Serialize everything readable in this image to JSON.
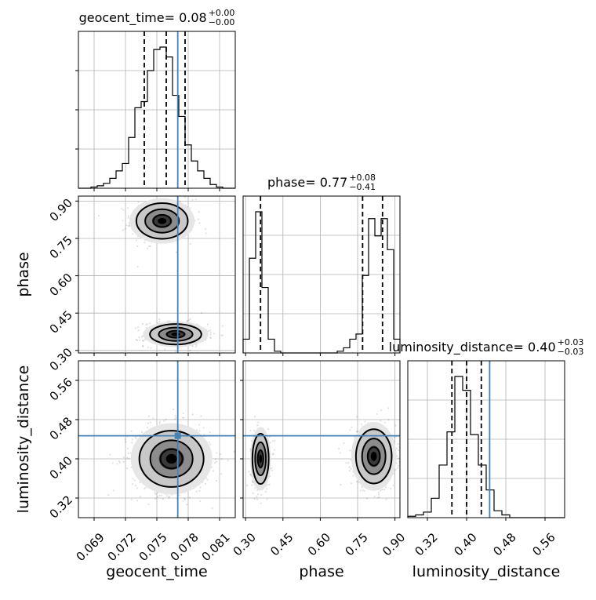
{
  "chart_data": {
    "type": "corner",
    "truth_color": "#4682b4",
    "parameters": [
      {
        "name": "geocent_time",
        "label": "geocent_time",
        "range": [
          0.0675,
          0.0825
        ],
        "ticks": [
          "0.069",
          "0.072",
          "0.075",
          "0.078",
          "0.081"
        ],
        "tick_values": [
          0.069,
          0.072,
          0.075,
          0.078,
          0.081
        ],
        "median": 0.0759,
        "quantiles": [
          0.0738,
          0.0759,
          0.0777
        ],
        "truth": 0.077,
        "title_value": "0.08",
        "title_plus": "+0.00",
        "title_minus": "−0.00",
        "hist": [
          0,
          0,
          1,
          2,
          4,
          8,
          14,
          20,
          41,
          65,
          70,
          95,
          112,
          114,
          106,
          75,
          58,
          35,
          22,
          14,
          8,
          3,
          1,
          0,
          0
        ]
      },
      {
        "name": "phase",
        "label": "phase",
        "range": [
          0.29,
          0.92
        ],
        "ticks": [
          "0.30",
          "0.45",
          "0.60",
          "0.75",
          "0.90"
        ],
        "tick_values": [
          0.3,
          0.45,
          0.6,
          0.75,
          0.9
        ],
        "median": 0.77,
        "quantiles": [
          0.36,
          0.77,
          0.85
        ],
        "truth": null,
        "title_value": "0.77",
        "title_plus": "+0.08",
        "title_minus": "−0.41",
        "hist": [
          8,
          55,
          82,
          38,
          8,
          1,
          0,
          0,
          0,
          0,
          0,
          0,
          0,
          0,
          0,
          1,
          3,
          8,
          11,
          45,
          78,
          68,
          78,
          60,
          8
        ]
      },
      {
        "name": "luminosity_distance",
        "label": "luminosity_distance",
        "range": [
          0.28,
          0.6
        ],
        "ticks": [
          "0.32",
          "0.40",
          "0.48",
          "0.56"
        ],
        "tick_values": [
          0.32,
          0.4,
          0.48,
          0.56
        ],
        "median": 0.4,
        "quantiles": [
          0.37,
          0.4,
          0.43
        ],
        "truth": 0.447,
        "title_value": "0.40",
        "title_plus": "+0.03",
        "title_minus": "−0.03",
        "hist": [
          1,
          2,
          4,
          14,
          38,
          62,
          102,
          92,
          60,
          38,
          20,
          5,
          2,
          0,
          0,
          0,
          0,
          0,
          0,
          0
        ]
      }
    ],
    "joint_truths": [
      {
        "x": "geocent_time",
        "y": "phase",
        "tx": 0.077,
        "ty": null
      },
      {
        "x": "geocent_time",
        "y": "luminosity_distance",
        "tx": 0.077,
        "ty": 0.447
      },
      {
        "x": "phase",
        "y": "luminosity_distance",
        "tx": null,
        "ty": 0.447
      }
    ],
    "modes": {
      "geocent_time|phase": [
        {
          "cx": 0.0755,
          "cy": 0.82,
          "sx": 0.0012,
          "sy": 0.035,
          "w": 0.5
        },
        {
          "cx": 0.0768,
          "cy": 0.365,
          "sx": 0.0012,
          "sy": 0.02,
          "w": 0.5
        }
      ],
      "geocent_time|luminosity_distance": [
        {
          "cx": 0.0764,
          "cy": 0.4,
          "sx": 0.0015,
          "sy": 0.028,
          "w": 1.0
        }
      ],
      "phase|luminosity_distance": [
        {
          "cx": 0.36,
          "cy": 0.4,
          "sx": 0.016,
          "sy": 0.025,
          "w": 0.4
        },
        {
          "cx": 0.815,
          "cy": 0.405,
          "sx": 0.035,
          "sy": 0.027,
          "w": 0.6
        }
      ]
    }
  }
}
